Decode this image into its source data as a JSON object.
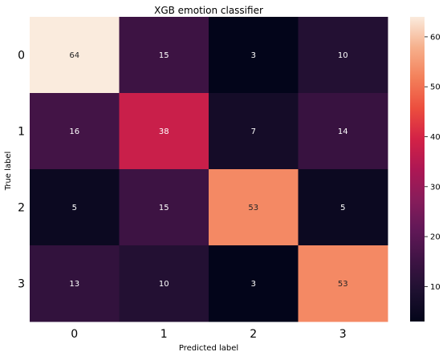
{
  "chart_data": {
    "type": "heatmap",
    "title": "XGB emotion classifier",
    "xlabel": "Predicted label",
    "ylabel": "True label",
    "x_categories": [
      "0",
      "1",
      "2",
      "3"
    ],
    "y_categories": [
      "0",
      "1",
      "2",
      "3"
    ],
    "values": [
      [
        64,
        15,
        3,
        10
      ],
      [
        16,
        38,
        7,
        14
      ],
      [
        5,
        15,
        53,
        5
      ],
      [
        13,
        10,
        3,
        53
      ]
    ],
    "colormap": "rocket",
    "colorbar": {
      "min": 3,
      "max": 64,
      "ticks": [
        10,
        20,
        30,
        40,
        50,
        60
      ]
    },
    "grid": false,
    "legend": "colorbar-right"
  }
}
